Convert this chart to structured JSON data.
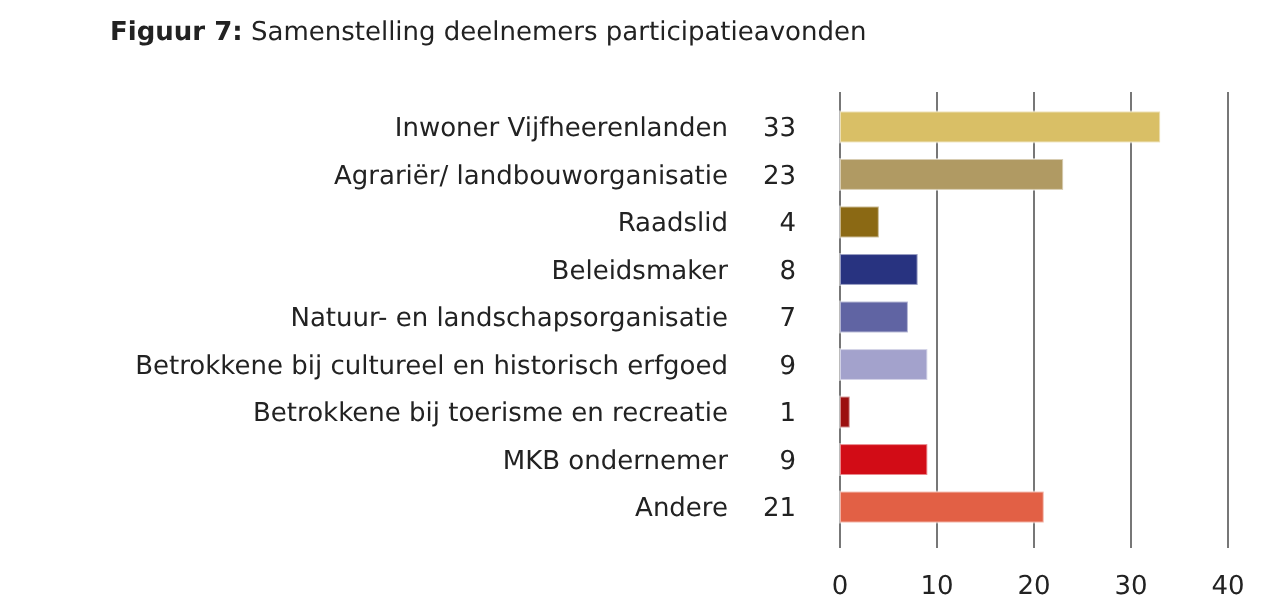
{
  "chart_data": {
    "type": "bar",
    "orientation": "horizontal",
    "title": "Figuur 7: Samenstelling deelnemers participatieavonden",
    "categories": [
      "Inwoner Vijfheerenlanden",
      "Agrariër/ landbouworganisatie",
      "Raadslid",
      "Beleidsmaker",
      "Natuur- en landschapsorganisatie",
      "Betrokkene bij cultureel en historisch erfgoed",
      "Betrokkene bij toerisme en recreatie",
      "MKB ondernemer",
      "Andere"
    ],
    "values": [
      33,
      23,
      4,
      8,
      7,
      9,
      1,
      9,
      21
    ],
    "colors": [
      "#d9bf66",
      "#b09a63",
      "#8b6914",
      "#283380",
      "#6064a3",
      "#a3a2cc",
      "#9c1010",
      "#d20c16",
      "#e26045"
    ],
    "xlim": [
      0,
      40
    ],
    "xticks": [
      0,
      10,
      20,
      30,
      40
    ],
    "grid": "x",
    "data_labels": true
  }
}
